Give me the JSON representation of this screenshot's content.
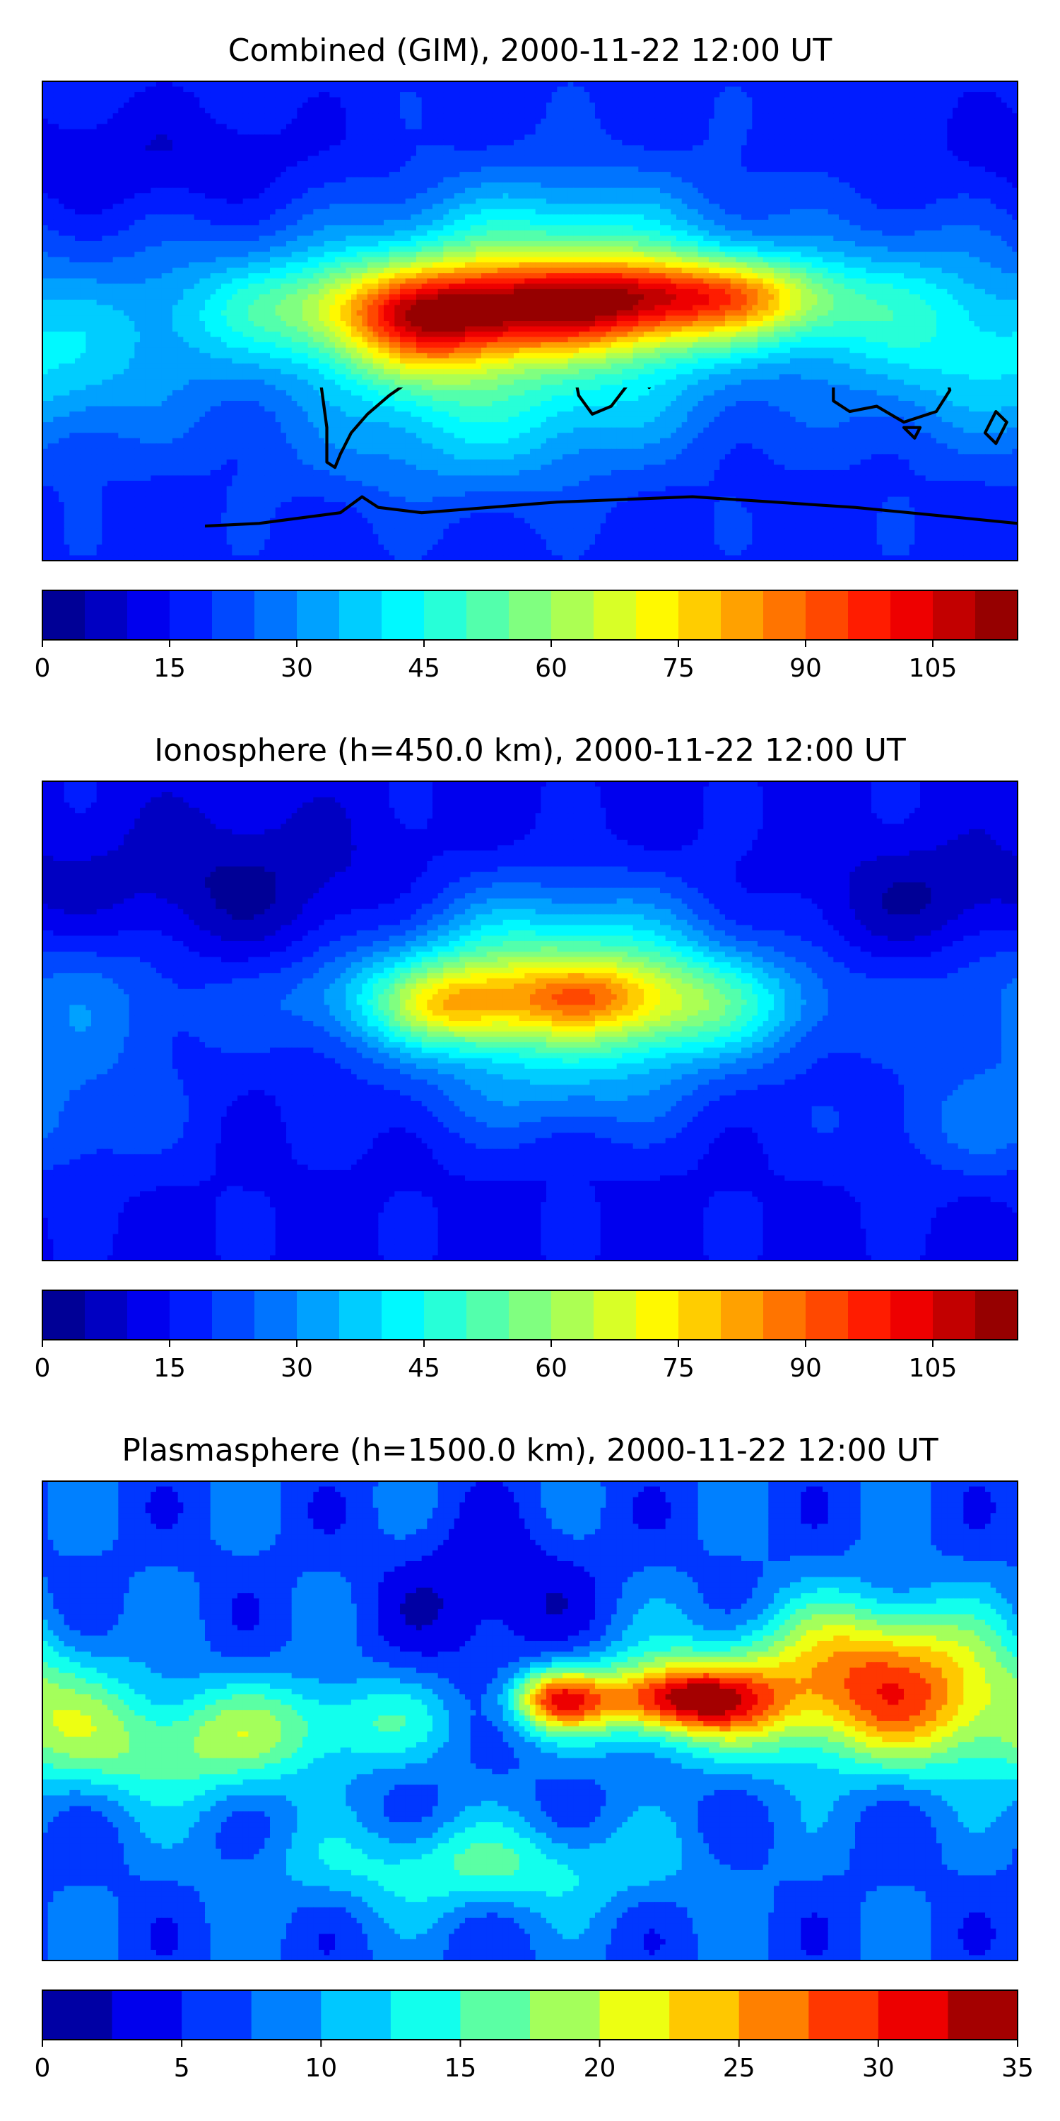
{
  "panels": [
    {
      "title": "Combined (GIM), 2000-11-22 12:00 UT",
      "colorbar": {
        "min": 0,
        "max": 115,
        "levels": 23,
        "ticks": [
          0,
          15,
          30,
          45,
          60,
          75,
          90,
          105
        ]
      },
      "features": {
        "base": 18,
        "blobs": [
          {
            "lon": 5,
            "lat": 5,
            "amp": 78,
            "sx": 62,
            "sy": 13
          },
          {
            "lon": 50,
            "lat": 12,
            "amp": 18,
            "sx": 25,
            "sy": 9
          },
          {
            "lon": 85,
            "lat": 10,
            "amp": 20,
            "sx": 20,
            "sy": 10
          },
          {
            "lon": -40,
            "lat": -8,
            "amp": 28,
            "sx": 22,
            "sy": 16
          },
          {
            "lon": 10,
            "lat": 30,
            "amp": 25,
            "sx": 45,
            "sy": 18
          },
          {
            "lon": 10,
            "lat": -25,
            "amp": 22,
            "sx": 45,
            "sy": 18
          },
          {
            "lon": -100,
            "lat": 0,
            "amp": 12,
            "sx": 50,
            "sy": 25
          },
          {
            "lon": 140,
            "lat": 0,
            "amp": 18,
            "sx": 30,
            "sy": 25
          },
          {
            "lon": -175,
            "lat": -20,
            "amp": 14,
            "sx": 30,
            "sy": 20
          },
          {
            "lon": -30,
            "lat": -50,
            "amp": 10,
            "sx": 40,
            "sy": 15
          },
          {
            "lon": -140,
            "lat": 60,
            "amp": -8,
            "sx": 50,
            "sy": 15
          }
        ]
      }
    },
    {
      "title": "Ionosphere  (h=450.0 km), 2000-11-22 12:00 UT",
      "colorbar": {
        "min": 0,
        "max": 115,
        "levels": 23,
        "ticks": [
          0,
          15,
          30,
          45,
          60,
          75,
          90,
          105
        ]
      },
      "features": {
        "base": 14,
        "blobs": [
          {
            "lon": 0,
            "lat": 8,
            "amp": 55,
            "sx": 50,
            "sy": 14
          },
          {
            "lon": -30,
            "lat": 5,
            "amp": 18,
            "sx": 15,
            "sy": 10
          },
          {
            "lon": 20,
            "lat": 10,
            "amp": 10,
            "sx": 15,
            "sy": 8
          },
          {
            "lon": 60,
            "lat": 5,
            "amp": 20,
            "sx": 35,
            "sy": 15
          },
          {
            "lon": 10,
            "lat": 35,
            "amp": 20,
            "sx": 40,
            "sy": 15
          },
          {
            "lon": 10,
            "lat": -25,
            "amp": 16,
            "sx": 40,
            "sy": 15
          },
          {
            "lon": -170,
            "lat": 5,
            "amp": 14,
            "sx": 35,
            "sy": 25
          },
          {
            "lon": 170,
            "lat": -40,
            "amp": 10,
            "sx": 40,
            "sy": 15
          },
          {
            "lon": -110,
            "lat": 50,
            "amp": -10,
            "sx": 40,
            "sy": 20
          },
          {
            "lon": 150,
            "lat": 45,
            "amp": -10,
            "sx": 30,
            "sy": 15
          }
        ]
      }
    },
    {
      "title": "Plasmasphere (h=1500.0 km), 2000-11-22 12:00 UT",
      "colorbar": {
        "min": 0,
        "max": 35,
        "levels": 14,
        "ticks": [
          0,
          5,
          10,
          15,
          20,
          25,
          30,
          35
        ]
      },
      "features": {
        "base": 7,
        "blobs": [
          {
            "lon": 10,
            "lat": 8,
            "amp": 18,
            "sx": 12,
            "sy": 8
          },
          {
            "lon": 55,
            "lat": 8,
            "amp": 20,
            "sx": 22,
            "sy": 9
          },
          {
            "lon": 100,
            "lat": 10,
            "amp": 12,
            "sx": 50,
            "sy": 18
          },
          {
            "lon": -130,
            "lat": -10,
            "amp": 10,
            "sx": 35,
            "sy": 15
          },
          {
            "lon": -70,
            "lat": 0,
            "amp": 7,
            "sx": 30,
            "sy": 12
          },
          {
            "lon": 150,
            "lat": 5,
            "amp": 10,
            "sx": 35,
            "sy": 18
          },
          {
            "lon": -20,
            "lat": -55,
            "amp": 8,
            "sx": 50,
            "sy": 12
          },
          {
            "lon": 130,
            "lat": 30,
            "amp": 8,
            "sx": 25,
            "sy": 15
          },
          {
            "lon": -15,
            "lat": 45,
            "amp": -5,
            "sx": 25,
            "sy": 20
          }
        ]
      }
    }
  ],
  "coastline_color": "#000000",
  "colormap": "jet"
}
